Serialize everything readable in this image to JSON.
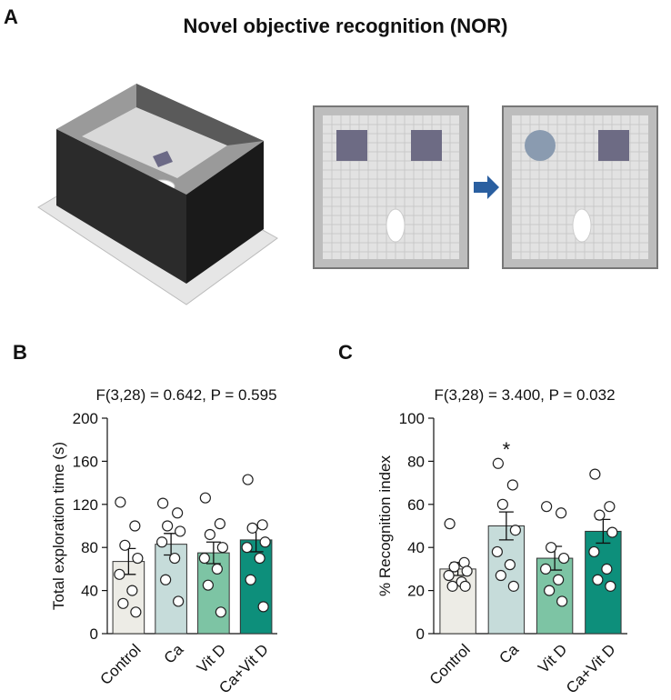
{
  "panel_a": {
    "label": "A",
    "title": "Novel objective recognition (NOR)"
  },
  "chart_data": [
    {
      "type": "bar",
      "panel_label": "B",
      "subtitle": "F(3,28) = 0.642, P = 0.595",
      "y_label": "Total exploration time (s)",
      "categories": [
        "Control",
        "Ca",
        "Vit D",
        "Ca+Vit D"
      ],
      "colors": [
        "#edece6",
        "#c6dcda",
        "#7dc4a4",
        "#0d8f7b"
      ],
      "values": [
        67,
        83,
        75,
        87
      ],
      "errors": [
        12,
        10,
        10,
        11
      ],
      "points": [
        [
          122,
          100,
          82,
          70,
          55,
          40,
          28,
          20
        ],
        [
          121,
          112,
          100,
          95,
          85,
          70,
          50,
          30
        ],
        [
          126,
          102,
          92,
          80,
          70,
          60,
          45,
          20
        ],
        [
          143,
          101,
          98,
          85,
          80,
          70,
          50,
          25
        ]
      ],
      "ylim": [
        0,
        200
      ],
      "yticks": [
        0,
        40,
        80,
        120,
        160,
        200
      ]
    },
    {
      "type": "bar",
      "panel_label": "C",
      "subtitle": "F(3,28) = 3.400, P = 0.032",
      "y_label": "% Recognition index",
      "categories": [
        "Control",
        "Ca",
        "Vit D",
        "Ca+Vit D"
      ],
      "colors": [
        "#edece6",
        "#c6dcda",
        "#7dc4a4",
        "#0d8f7b"
      ],
      "values": [
        30,
        50,
        35,
        47.5
      ],
      "errors": [
        3,
        6.5,
        5.5,
        5.5
      ],
      "points": [
        [
          51,
          33,
          31,
          29,
          27,
          24,
          22,
          22
        ],
        [
          79,
          69,
          60,
          48,
          38,
          32,
          27,
          22
        ],
        [
          59,
          56,
          40,
          35,
          30,
          25,
          20,
          15
        ],
        [
          74,
          59,
          55,
          47,
          38,
          30,
          25,
          22
        ]
      ],
      "annotation": "*",
      "ylim": [
        0,
        100
      ],
      "yticks": [
        0,
        20,
        40,
        60,
        80,
        100
      ]
    }
  ]
}
